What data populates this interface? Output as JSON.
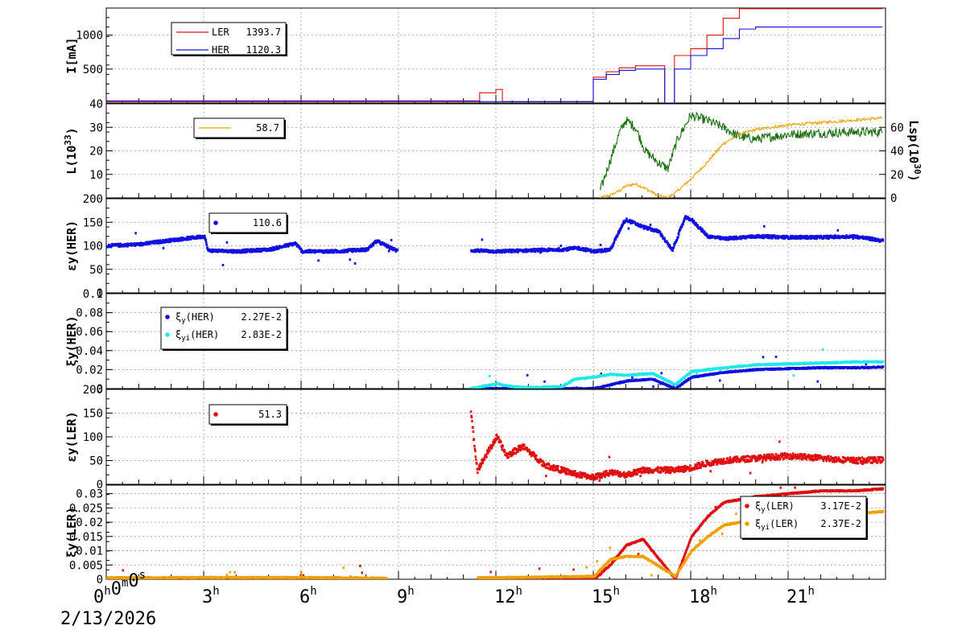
{
  "colors": {
    "ler": "#e01010",
    "her": "#1010e0",
    "green": "#1a6e10",
    "orange": "#f0a000",
    "cyan": "#20e8e8"
  },
  "x_ticks": [
    {
      "base": "0",
      "sup": "h",
      "parts": [
        [
          "0",
          "h"
        ],
        [
          "0",
          "m"
        ],
        [
          "0",
          "s"
        ]
      ]
    },
    {
      "base": "3",
      "sup": "h"
    },
    {
      "base": "6",
      "sup": "h"
    },
    {
      "base": "9",
      "sup": "h"
    },
    {
      "base": "12",
      "sup": "h"
    },
    {
      "base": "15",
      "sup": "h"
    },
    {
      "base": "18",
      "sup": "h"
    },
    {
      "base": "21",
      "sup": "h"
    }
  ],
  "x_date": "2/13/2026",
  "chart_data": [
    {
      "type": "line",
      "ylabel": "I[mA]",
      "ylim": [
        0,
        1400
      ],
      "y_ticks": [
        "500",
        "1000"
      ],
      "legend": [
        {
          "name": "LER",
          "value": "1393.7",
          "color": "#e01010"
        },
        {
          "name": "HER",
          "value": "1120.3",
          "color": "#1010e0"
        }
      ],
      "x_hours": [
        0,
        11,
        11.5,
        12,
        12.2,
        15,
        15.4,
        15.8,
        16.3,
        17.2,
        17.5,
        18,
        18.5,
        19,
        19.5,
        20,
        23.9
      ],
      "series": [
        {
          "name": "LER",
          "values": [
            20,
            20,
            150,
            200,
            20,
            380,
            460,
            520,
            550,
            0,
            700,
            800,
            1000,
            1250,
            1390,
            1390,
            1393.7
          ]
        },
        {
          "name": "HER",
          "values": [
            30,
            30,
            20,
            20,
            20,
            350,
            420,
            480,
            500,
            0,
            500,
            700,
            800,
            950,
            1090,
            1120,
            1120.3
          ]
        }
      ]
    },
    {
      "type": "line",
      "ylabel": "L(10",
      "ylabel_sup": "33",
      "ylabel_tail": ")",
      "ylim": [
        0,
        40
      ],
      "y_ticks": [
        "10",
        "20",
        "30",
        "40"
      ],
      "y2label": "Lsp(10",
      "y2label_sup": "30",
      "y2label_tail": ")",
      "y2lim": [
        0,
        80
      ],
      "y2_ticks": [
        "0",
        "20",
        "40",
        "60"
      ],
      "legend": [
        {
          "name": "",
          "value": "58.7",
          "color": "#f0a000"
        }
      ],
      "x_hours": [
        15.2,
        15.5,
        15.8,
        16,
        16.3,
        16.6,
        17,
        17.3,
        17.6,
        18,
        18.5,
        19,
        19.5,
        20,
        21,
        22,
        23,
        23.9
      ],
      "series": [
        {
          "name": "",
          "values": [
            0,
            1,
            3,
            5,
            6,
            4,
            1,
            0,
            3,
            8,
            15,
            23,
            27,
            29,
            31,
            32,
            33,
            34
          ]
        },
        {
          "name": "",
          "values": [
            5,
            30,
            55,
            66,
            60,
            40,
            30,
            25,
            50,
            70,
            66,
            60,
            52,
            50,
            54,
            55,
            56,
            56
          ]
        }
      ]
    },
    {
      "type": "scatter",
      "ylabel": "εy(HER)",
      "ylim": [
        0,
        200
      ],
      "y_ticks": [
        "0",
        "50",
        "100",
        "150",
        "200"
      ],
      "legend": [
        {
          "name": "",
          "value": "110.6",
          "color": "#1010e0"
        }
      ],
      "x_hours": [
        0,
        1,
        2,
        3,
        3.1,
        4,
        5,
        5.8,
        6,
        7,
        8,
        8.3,
        8.9,
        11.3,
        12,
        13,
        14,
        14.5,
        15,
        15.5,
        15.9,
        16,
        16.5,
        17,
        17.4,
        17.8,
        18,
        18.5,
        19,
        20,
        21,
        22,
        23,
        23.9
      ],
      "series": [
        {
          "name": "",
          "values": [
            100,
            103,
            112,
            120,
            90,
            88,
            92,
            105,
            88,
            88,
            92,
            110,
            90,
            90,
            88,
            90,
            92,
            95,
            88,
            92,
            150,
            155,
            140,
            130,
            90,
            160,
            155,
            120,
            115,
            120,
            118,
            118,
            120,
            110.6
          ]
        }
      ]
    },
    {
      "type": "scatter",
      "ylabel": "ξy(HER)",
      "ylim": [
        0,
        0.1
      ],
      "y_ticks": [
        "0",
        "0.02",
        "0.04",
        "0.06",
        "0.08",
        "0.1"
      ],
      "legend": [
        {
          "name": "ξy(HER)",
          "value": "2.27E-2",
          "color": "#1010e0"
        },
        {
          "name": "ξyi(HER)",
          "value": "2.83E-2",
          "color": "#20e8e8"
        }
      ],
      "x_hours": [
        11.2,
        12,
        12.5,
        13,
        14,
        14.4,
        15,
        15.5,
        16,
        16.8,
        17.5,
        18,
        19,
        20,
        21,
        22,
        23,
        23.9
      ],
      "series": [
        {
          "name": "ξy(HER)",
          "values": [
            0,
            0,
            0,
            0,
            0,
            0,
            0,
            0.004,
            0.008,
            0.01,
            0,
            0.012,
            0.017,
            0.02,
            0.021,
            0.022,
            0.022,
            0.0227
          ]
        },
        {
          "name": "ξyi(HER)",
          "values": [
            0,
            0.005,
            0.002,
            0.001,
            0.002,
            0.01,
            0.012,
            0.015,
            0.014,
            0.016,
            0.004,
            0.018,
            0.022,
            0.025,
            0.026,
            0.027,
            0.028,
            0.0283
          ]
        }
      ]
    },
    {
      "type": "scatter",
      "ylabel": "εy(LER)",
      "ylim": [
        0,
        200
      ],
      "y_ticks": [
        "0",
        "50",
        "100",
        "150",
        "200"
      ],
      "legend": [
        {
          "name": "",
          "value": "51.3",
          "color": "#e01010"
        }
      ],
      "x_hours": [
        11.2,
        11.4,
        12,
        12.3,
        12.8,
        13.5,
        14,
        14.5,
        15,
        15.5,
        16,
        16.5,
        17.5,
        18,
        18.5,
        19,
        20,
        21,
        22,
        23,
        23.9
      ],
      "series": [
        {
          "name": "",
          "values": [
            150,
            30,
            100,
            60,
            80,
            40,
            30,
            20,
            15,
            25,
            20,
            30,
            30,
            35,
            45,
            50,
            55,
            60,
            55,
            50,
            51.3
          ]
        }
      ]
    },
    {
      "type": "scatter",
      "ylabel": "ξy(LER)",
      "ylim": [
        0,
        0.033
      ],
      "y_ticks": [
        "0",
        "0.005",
        "0.01",
        "0.015",
        "0.02",
        "0.025",
        "0.03"
      ],
      "legend": [
        {
          "name": "ξy(LER)",
          "value": "3.17E-2",
          "color": "#e01010"
        },
        {
          "name": "ξyi(LER)",
          "value": "2.37E-2",
          "color": "#f0a000"
        }
      ],
      "x_hours": [
        0,
        3,
        6,
        8.5,
        11.5,
        13,
        15,
        15.5,
        16,
        16.5,
        17.5,
        18,
        18.5,
        19,
        20,
        21,
        22,
        23,
        23.9
      ],
      "series": [
        {
          "name": "ξy(LER)",
          "values": [
            0,
            0,
            0,
            0,
            0,
            0,
            0,
            0.005,
            0.012,
            0.014,
            0,
            0.015,
            0.022,
            0.027,
            0.029,
            0.03,
            0.031,
            0.031,
            0.0317
          ]
        },
        {
          "name": "ξyi(LER)",
          "values": [
            0.0005,
            0.0006,
            0.0006,
            0.0004,
            0.0005,
            0.0007,
            0.001,
            0.007,
            0.008,
            0.008,
            0.001,
            0.01,
            0.015,
            0.019,
            0.021,
            0.022,
            0.023,
            0.023,
            0.0237
          ]
        }
      ]
    }
  ]
}
